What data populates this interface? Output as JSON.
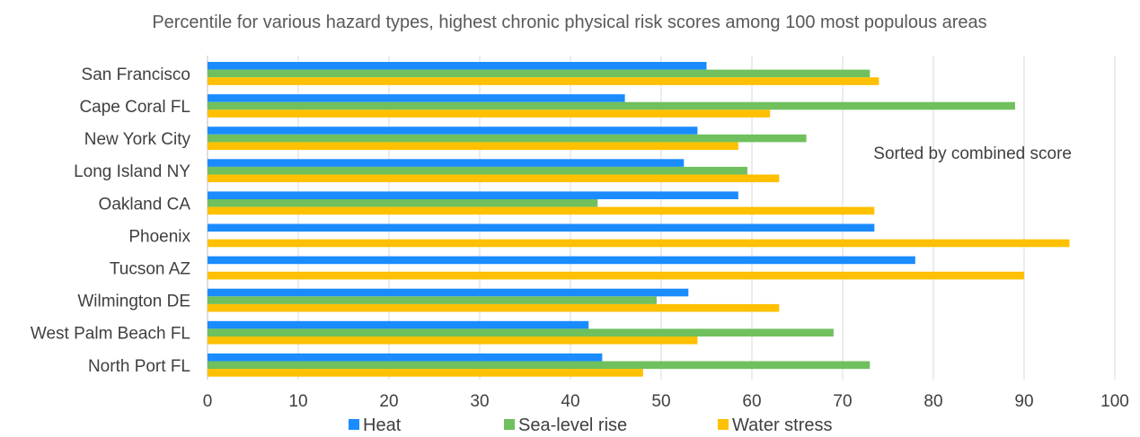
{
  "chart_data": {
    "type": "bar",
    "orientation": "horizontal",
    "title": "Percentile for various hazard types, highest chronic physical risk scores among 100 most populous areas",
    "annotation": "Sorted by combined score",
    "categories": [
      "San Francisco",
      "Cape Coral FL",
      "New York City",
      "Long Island NY",
      "Oakland CA",
      "Phoenix",
      "Tucson AZ",
      "Wilmington DE",
      "West Palm Beach FL",
      "North Port FL"
    ],
    "series": [
      {
        "name": "Heat",
        "color": "#1a8cff",
        "values": [
          55,
          46,
          54,
          52.5,
          58.5,
          73.5,
          78,
          53,
          42,
          43.5
        ]
      },
      {
        "name": "Sea-level rise",
        "color": "#70c05e",
        "values": [
          73,
          89,
          66,
          59.5,
          43,
          0,
          0,
          49.5,
          69,
          73
        ]
      },
      {
        "name": "Water stress",
        "color": "#ffc000",
        "values": [
          74,
          62,
          58.5,
          63,
          73.5,
          95,
          90,
          63,
          54,
          48
        ]
      }
    ],
    "xlim": [
      0,
      100
    ],
    "xticks": [
      "0",
      "10",
      "20",
      "30",
      "40",
      "50",
      "60",
      "70",
      "80",
      "90",
      "100"
    ],
    "grid": true,
    "legend_position": "bottom"
  }
}
